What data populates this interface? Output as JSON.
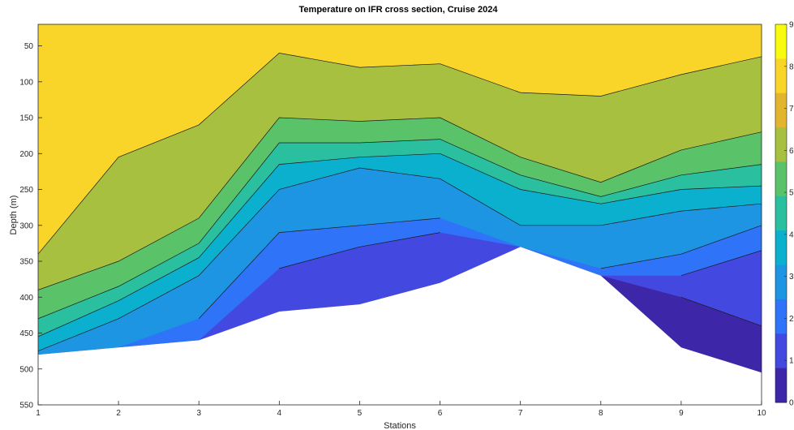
{
  "chart_data": {
    "type": "filled-contour",
    "title": "Temperature on IFR cross section, Cruise 2024",
    "xlabel": "Stations",
    "ylabel": "Depth (m)",
    "xlim": [
      1,
      10
    ],
    "ylim": [
      550,
      20
    ],
    "y_reversed": true,
    "xticks": [
      1,
      2,
      3,
      4,
      5,
      6,
      7,
      8,
      9,
      10
    ],
    "yticks": [
      50,
      100,
      150,
      200,
      250,
      300,
      350,
      400,
      450,
      500,
      550
    ],
    "colorbar": {
      "range": [
        0,
        9
      ],
      "ticks": [
        "9",
        "8",
        "7",
        "6",
        "5",
        "4",
        "3",
        "2",
        "1",
        "0"
      ]
    },
    "contour_levels": [
      1,
      2,
      3,
      4,
      5,
      6,
      7,
      8
    ],
    "colors": [
      "#3e26a8",
      "#4349e0",
      "#2e73f8",
      "#1d95e2",
      "#0cb0cf",
      "#29bf9f",
      "#5ac36a",
      "#a8c040",
      "#e3b52f",
      "#f9d52a",
      "#f9fb0e"
    ],
    "stations": [
      1,
      2,
      3,
      4,
      5,
      6,
      7,
      8,
      9,
      10
    ],
    "bottom_depth": [
      480,
      470,
      460,
      420,
      410,
      380,
      330,
      370,
      470,
      505
    ],
    "isotherm_depths": {
      "8": [
        340,
        205,
        160,
        60,
        80,
        75,
        115,
        120,
        90,
        65
      ],
      "7": [
        390,
        350,
        290,
        150,
        155,
        150,
        205,
        240,
        195,
        170
      ],
      "6": [
        430,
        385,
        325,
        185,
        185,
        180,
        230,
        260,
        230,
        215
      ],
      "5": [
        455,
        405,
        345,
        215,
        205,
        200,
        250,
        270,
        250,
        245
      ],
      "4": [
        475,
        430,
        370,
        250,
        220,
        235,
        300,
        300,
        280,
        270
      ],
      "3": [
        null,
        470,
        430,
        310,
        300,
        290,
        330,
        360,
        340,
        300
      ],
      "2": [
        null,
        null,
        null,
        360,
        330,
        310,
        345,
        380,
        370,
        335
      ],
      "1": [
        null,
        null,
        null,
        null,
        null,
        null,
        null,
        400,
        400,
        440
      ]
    }
  }
}
